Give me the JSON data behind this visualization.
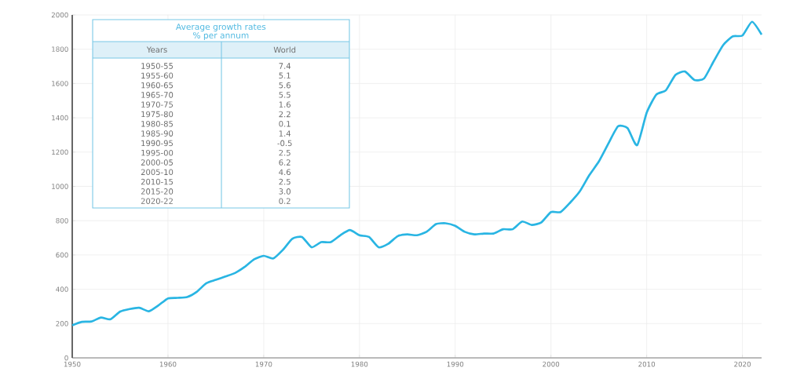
{
  "chart_data": {
    "type": "line",
    "x": [
      1950,
      1951,
      1952,
      1953,
      1954,
      1955,
      1956,
      1957,
      1958,
      1959,
      1960,
      1961,
      1962,
      1963,
      1964,
      1965,
      1966,
      1967,
      1968,
      1969,
      1970,
      1971,
      1972,
      1973,
      1974,
      1975,
      1976,
      1977,
      1978,
      1979,
      1980,
      1981,
      1982,
      1983,
      1984,
      1985,
      1986,
      1987,
      1988,
      1989,
      1990,
      1991,
      1992,
      1993,
      1994,
      1995,
      1996,
      1997,
      1998,
      1999,
      2000,
      2001,
      2002,
      2003,
      2004,
      2005,
      2006,
      2007,
      2008,
      2009,
      2010,
      2011,
      2012,
      2013,
      2014,
      2015,
      2016,
      2017,
      2018,
      2019,
      2020,
      2021,
      2022
    ],
    "series": [
      {
        "color": "#29b5e3",
        "values": [
          190,
          210,
          212,
          235,
          225,
          270,
          285,
          292,
          272,
          306,
          347,
          350,
          355,
          385,
          435,
          455,
          475,
          495,
          530,
          575,
          595,
          580,
          630,
          695,
          705,
          645,
          675,
          675,
          715,
          745,
          715,
          705,
          645,
          665,
          710,
          720,
          715,
          735,
          780,
          785,
          770,
          735,
          720,
          725,
          725,
          750,
          750,
          795,
          775,
          790,
          850,
          850,
          905,
          970,
          1065,
          1145,
          1250,
          1350,
          1340,
          1240,
          1430,
          1535,
          1560,
          1650,
          1670,
          1620,
          1630,
          1730,
          1825,
          1875,
          1880,
          1960,
          1885
        ]
      }
    ],
    "xlim": [
      1950,
      2022
    ],
    "ylim": [
      0,
      2000
    ],
    "xticks": [
      1950,
      1960,
      1970,
      1980,
      1990,
      2000,
      2010,
      2020
    ],
    "yticks": [
      0,
      200,
      400,
      600,
      800,
      1000,
      1200,
      1400,
      1600,
      1800,
      2000
    ],
    "grid": true,
    "marker": "none",
    "line_style": "solid",
    "annotations": [
      "Average growth rates",
      "% per annum",
      "Years",
      "World",
      "1950-55",
      "7.4",
      "1955-60",
      "5.1",
      "1960-65",
      "5.6",
      "1965-70",
      "5.5",
      "1970-75",
      "1.6",
      "1975-80",
      "2.2",
      "1980-85",
      "0.1",
      "1985-90",
      "1.4",
      "1990-95",
      "-0.5",
      "1995-00",
      "2.5",
      "2000-05",
      "6.2",
      "2005-10",
      "4.6",
      "2010-15",
      "2.5",
      "2015-20",
      "3.0",
      "2020-22",
      "0.2"
    ]
  }
}
